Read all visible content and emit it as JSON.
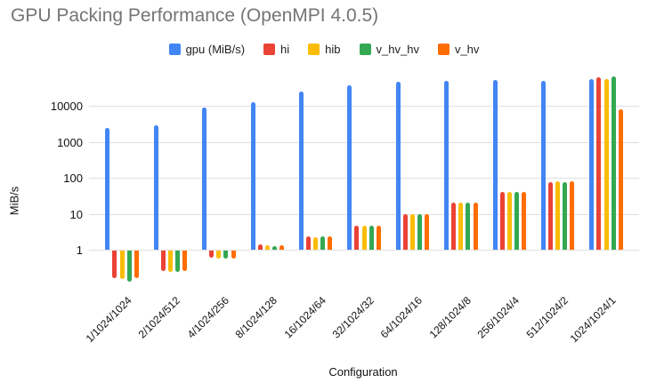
{
  "chart_data": {
    "type": "bar",
    "title": "GPU Packing Performance (OpenMPI 4.0.5)",
    "xlabel": "Configuration",
    "ylabel": "MiB/s",
    "y_scale": "log",
    "y_ticks": [
      1,
      10,
      100,
      1000,
      10000
    ],
    "ylim": [
      0.1,
      80000
    ],
    "grid": true,
    "legend_position": "top",
    "categories": [
      "1/1024/1024",
      "2/1024/512",
      "4/1024/256",
      "8/1024/128",
      "16/1024/64",
      "32/1024/32",
      "64/1024/16",
      "128/1024/8",
      "256/1024/4",
      "512/1024/2",
      "1024/1024/1"
    ],
    "series": [
      {
        "name": "gpu (MiB/s)",
        "color": "#4285F4",
        "values": [
          2500,
          2900,
          9000,
          13000,
          25000,
          38000,
          47000,
          50000,
          53000,
          50000,
          58000
        ]
      },
      {
        "name": "hi",
        "color": "#EA4335",
        "values": [
          0.17,
          0.27,
          0.62,
          1.4,
          2.3,
          4.8,
          10,
          21,
          40,
          78,
          65000
        ]
      },
      {
        "name": "hib",
        "color": "#FBBC04",
        "values": [
          0.16,
          0.26,
          0.6,
          1.3,
          2.25,
          4.7,
          10,
          21,
          40,
          80,
          57000
        ]
      },
      {
        "name": "v_hv_hv",
        "color": "#34A853",
        "values": [
          0.14,
          0.26,
          0.6,
          1.25,
          2.3,
          4.7,
          10,
          20,
          40,
          78,
          68000
        ]
      },
      {
        "name": "v_hv",
        "color": "#FF6D01",
        "values": [
          0.17,
          0.27,
          0.6,
          1.35,
          2.3,
          4.8,
          10,
          21,
          40,
          80,
          8200
        ]
      }
    ]
  }
}
